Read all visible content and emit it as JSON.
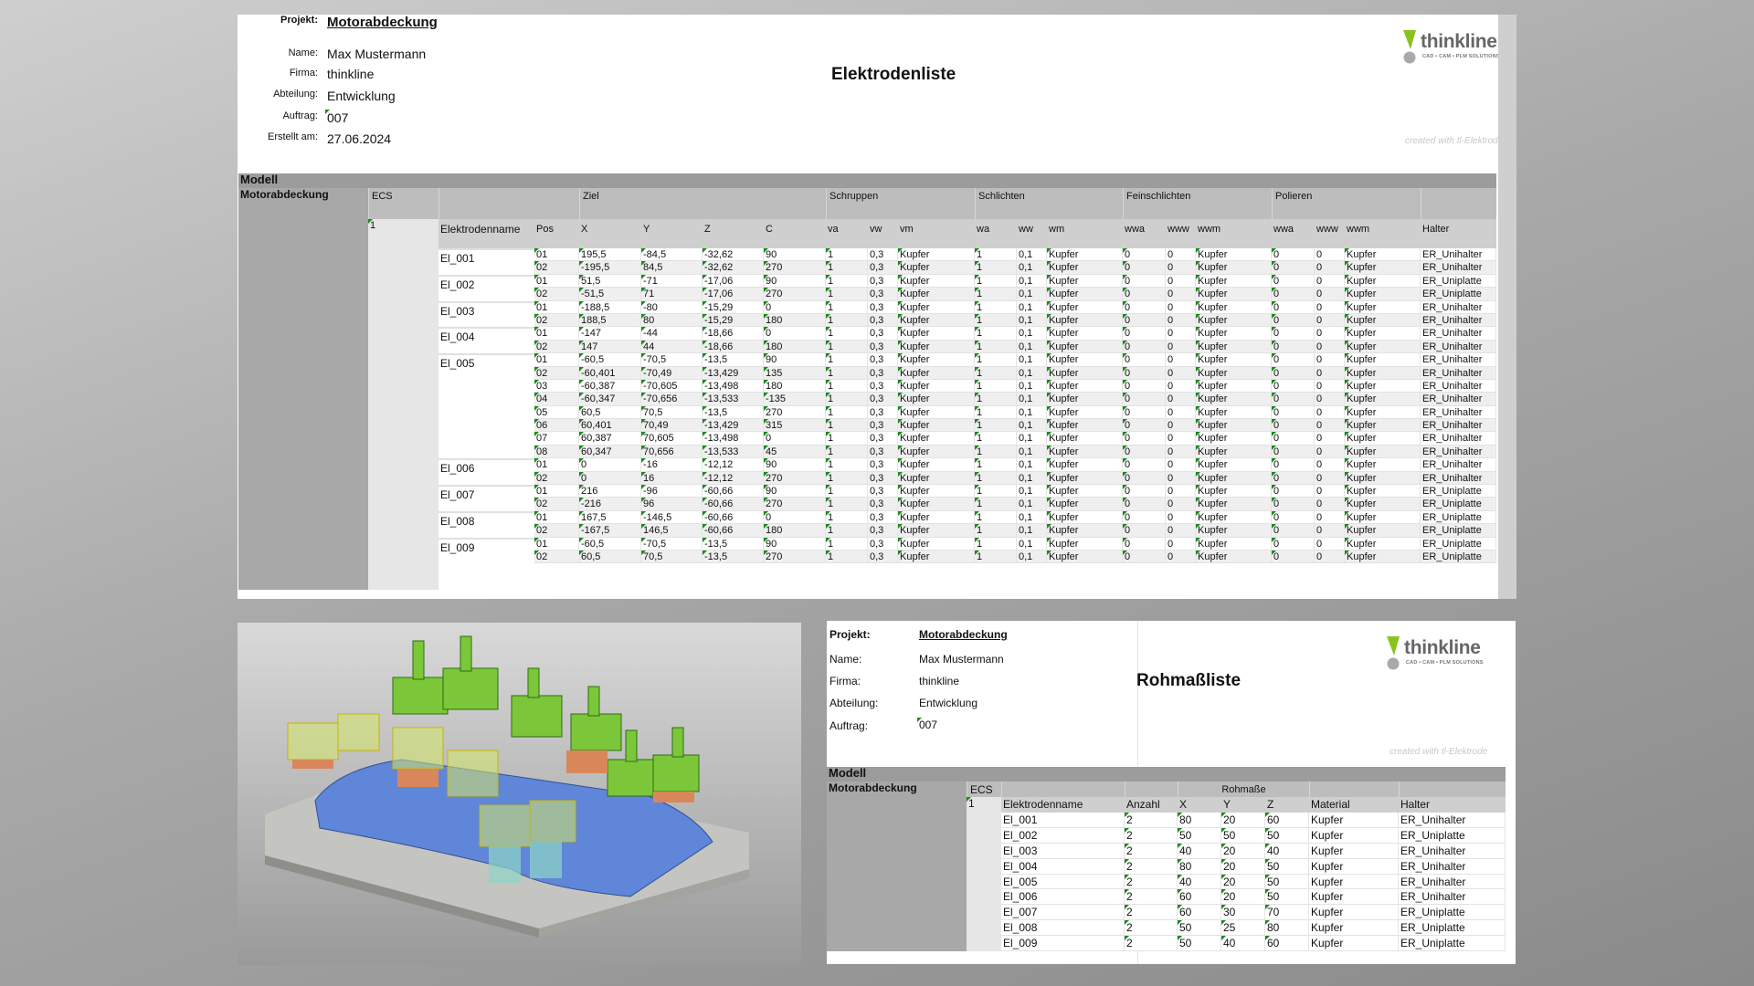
{
  "elektrodenliste": {
    "header": {
      "projekt_label": "Projekt:",
      "projekt": "Motorabdeckung",
      "name_label": "Name:",
      "name": "Max Mustermann",
      "firma_label": "Firma:",
      "firma": "thinkline",
      "abteilung_label": "Abteilung:",
      "abteilung": "Entwicklung",
      "auftrag_label": "Auftrag:",
      "auftrag": "007",
      "erstellt_label": "Erstellt am:",
      "erstellt": "27.06.2024",
      "title": "Elektrodenliste",
      "created_with": "created with tl-Elektrode"
    },
    "logo": {
      "word": "thinkline",
      "tagline": "CAD • CAM • PLM SOLUTIONS",
      "accent": "#8cc21f"
    },
    "table": {
      "modell_label": "Modell",
      "modell": "Motorabdeckung",
      "ecs_label": "ECS",
      "ecs": "1",
      "groups": [
        "Ziel",
        "Schruppen",
        "Schlichten",
        "Feinschlichten",
        "Polieren"
      ],
      "columns": [
        "Elektrodenname",
        "Pos",
        "X",
        "Y",
        "Z",
        "C",
        "va",
        "vw",
        "vm",
        "wa",
        "ww",
        "wm",
        "wwa",
        "www",
        "wwm",
        "wwa",
        "www",
        "wwm",
        "Halter"
      ],
      "electrodes": [
        {
          "name": "El_001",
          "rows": [
            [
              "01",
              "195,5",
              "-84,5",
              "-32,62",
              "90",
              "1",
              "0,3",
              "Kupfer",
              "1",
              "0,1",
              "Kupfer",
              "0",
              "0",
              "Kupfer",
              "0",
              "0",
              "Kupfer",
              "ER_Unihalter"
            ],
            [
              "02",
              "-195,5",
              "84,5",
              "-32,62",
              "270",
              "1",
              "0,3",
              "Kupfer",
              "1",
              "0,1",
              "Kupfer",
              "0",
              "0",
              "Kupfer",
              "0",
              "0",
              "Kupfer",
              "ER_Unihalter"
            ]
          ]
        },
        {
          "name": "El_002",
          "rows": [
            [
              "01",
              "51,5",
              "-71",
              "-17,06",
              "90",
              "1",
              "0,3",
              "Kupfer",
              "1",
              "0,1",
              "Kupfer",
              "0",
              "0",
              "Kupfer",
              "0",
              "0",
              "Kupfer",
              "ER_Uniplatte"
            ],
            [
              "02",
              "-51,5",
              "71",
              "-17,06",
              "270",
              "1",
              "0,3",
              "Kupfer",
              "1",
              "0,1",
              "Kupfer",
              "0",
              "0",
              "Kupfer",
              "0",
              "0",
              "Kupfer",
              "ER_Uniplatte"
            ]
          ]
        },
        {
          "name": "El_003",
          "rows": [
            [
              "01",
              "-188,5",
              "-80",
              "-15,29",
              "0",
              "1",
              "0,3",
              "Kupfer",
              "1",
              "0,1",
              "Kupfer",
              "0",
              "0",
              "Kupfer",
              "0",
              "0",
              "Kupfer",
              "ER_Unihalter"
            ],
            [
              "02",
              "188,5",
              "80",
              "-15,29",
              "180",
              "1",
              "0,3",
              "Kupfer",
              "1",
              "0,1",
              "Kupfer",
              "0",
              "0",
              "Kupfer",
              "0",
              "0",
              "Kupfer",
              "ER_Unihalter"
            ]
          ]
        },
        {
          "name": "El_004",
          "rows": [
            [
              "01",
              "-147",
              "-44",
              "-18,66",
              "0",
              "1",
              "0,3",
              "Kupfer",
              "1",
              "0,1",
              "Kupfer",
              "0",
              "0",
              "Kupfer",
              "0",
              "0",
              "Kupfer",
              "ER_Unihalter"
            ],
            [
              "02",
              "147",
              "44",
              "-18,66",
              "180",
              "1",
              "0,3",
              "Kupfer",
              "1",
              "0,1",
              "Kupfer",
              "0",
              "0",
              "Kupfer",
              "0",
              "0",
              "Kupfer",
              "ER_Unihalter"
            ]
          ]
        },
        {
          "name": "El_005",
          "rows": [
            [
              "01",
              "-60,5",
              "-70,5",
              "-13,5",
              "90",
              "1",
              "0,3",
              "Kupfer",
              "1",
              "0,1",
              "Kupfer",
              "0",
              "0",
              "Kupfer",
              "0",
              "0",
              "Kupfer",
              "ER_Unihalter"
            ],
            [
              "02",
              "-60,401",
              "-70,49",
              "-13,429",
              "135",
              "1",
              "0,3",
              "Kupfer",
              "1",
              "0,1",
              "Kupfer",
              "0",
              "0",
              "Kupfer",
              "0",
              "0",
              "Kupfer",
              "ER_Unihalter"
            ],
            [
              "03",
              "-60,387",
              "-70,605",
              "-13,498",
              "180",
              "1",
              "0,3",
              "Kupfer",
              "1",
              "0,1",
              "Kupfer",
              "0",
              "0",
              "Kupfer",
              "0",
              "0",
              "Kupfer",
              "ER_Unihalter"
            ],
            [
              "04",
              "-60,347",
              "-70,656",
              "-13,533",
              "-135",
              "1",
              "0,3",
              "Kupfer",
              "1",
              "0,1",
              "Kupfer",
              "0",
              "0",
              "Kupfer",
              "0",
              "0",
              "Kupfer",
              "ER_Unihalter"
            ],
            [
              "05",
              "60,5",
              "70,5",
              "-13,5",
              "270",
              "1",
              "0,3",
              "Kupfer",
              "1",
              "0,1",
              "Kupfer",
              "0",
              "0",
              "Kupfer",
              "0",
              "0",
              "Kupfer",
              "ER_Unihalter"
            ],
            [
              "06",
              "60,401",
              "70,49",
              "-13,429",
              "315",
              "1",
              "0,3",
              "Kupfer",
              "1",
              "0,1",
              "Kupfer",
              "0",
              "0",
              "Kupfer",
              "0",
              "0",
              "Kupfer",
              "ER_Unihalter"
            ],
            [
              "07",
              "60,387",
              "70,605",
              "-13,498",
              "0",
              "1",
              "0,3",
              "Kupfer",
              "1",
              "0,1",
              "Kupfer",
              "0",
              "0",
              "Kupfer",
              "0",
              "0",
              "Kupfer",
              "ER_Unihalter"
            ],
            [
              "08",
              "60,347",
              "70,656",
              "-13,533",
              "45",
              "1",
              "0,3",
              "Kupfer",
              "1",
              "0,1",
              "Kupfer",
              "0",
              "0",
              "Kupfer",
              "0",
              "0",
              "Kupfer",
              "ER_Unihalter"
            ]
          ]
        },
        {
          "name": "El_006",
          "rows": [
            [
              "01",
              "0",
              "-16",
              "-12,12",
              "90",
              "1",
              "0,3",
              "Kupfer",
              "1",
              "0,1",
              "Kupfer",
              "0",
              "0",
              "Kupfer",
              "0",
              "0",
              "Kupfer",
              "ER_Unihalter"
            ],
            [
              "02",
              "0",
              "16",
              "-12,12",
              "270",
              "1",
              "0,3",
              "Kupfer",
              "1",
              "0,1",
              "Kupfer",
              "0",
              "0",
              "Kupfer",
              "0",
              "0",
              "Kupfer",
              "ER_Unihalter"
            ]
          ]
        },
        {
          "name": "El_007",
          "rows": [
            [
              "01",
              "216",
              "-96",
              "-60,66",
              "90",
              "1",
              "0,3",
              "Kupfer",
              "1",
              "0,1",
              "Kupfer",
              "0",
              "0",
              "Kupfer",
              "0",
              "0",
              "Kupfer",
              "ER_Uniplatte"
            ],
            [
              "02",
              "-216",
              "96",
              "-60,66",
              "270",
              "1",
              "0,3",
              "Kupfer",
              "1",
              "0,1",
              "Kupfer",
              "0",
              "0",
              "Kupfer",
              "0",
              "0",
              "Kupfer",
              "ER_Uniplatte"
            ]
          ]
        },
        {
          "name": "El_008",
          "rows": [
            [
              "01",
              "167,5",
              "-146,5",
              "-60,66",
              "0",
              "1",
              "0,3",
              "Kupfer",
              "1",
              "0,1",
              "Kupfer",
              "0",
              "0",
              "Kupfer",
              "0",
              "0",
              "Kupfer",
              "ER_Uniplatte"
            ],
            [
              "02",
              "-167,5",
              "146,5",
              "-60,66",
              "180",
              "1",
              "0,3",
              "Kupfer",
              "1",
              "0,1",
              "Kupfer",
              "0",
              "0",
              "Kupfer",
              "0",
              "0",
              "Kupfer",
              "ER_Uniplatte"
            ]
          ]
        },
        {
          "name": "El_009",
          "rows": [
            [
              "01",
              "-60,5",
              "-70,5",
              "-13,5",
              "90",
              "1",
              "0,3",
              "Kupfer",
              "1",
              "0,1",
              "Kupfer",
              "0",
              "0",
              "Kupfer",
              "0",
              "0",
              "Kupfer",
              "ER_Uniplatte"
            ],
            [
              "02",
              "60,5",
              "70,5",
              "-13,5",
              "270",
              "1",
              "0,3",
              "Kupfer",
              "1",
              "0,1",
              "Kupfer",
              "0",
              "0",
              "Kupfer",
              "0",
              "0",
              "Kupfer",
              "ER_Uniplatte"
            ]
          ]
        }
      ]
    }
  },
  "rohmassliste": {
    "header": {
      "projekt_label": "Projekt:",
      "projekt": "Motorabdeckung",
      "name_label": "Name:",
      "name": "Max Mustermann",
      "firma_label": "Firma:",
      "firma": "thinkline",
      "abteilung_label": "Abteilung:",
      "abteilung": "Entwicklung",
      "auftrag_label": "Auftrag:",
      "auftrag": "007",
      "title": "Rohmaßliste",
      "created_with": "created with tl-Elektrode"
    },
    "logo": {
      "word": "thinkline",
      "tagline": "CAD • CAM • PLM SOLUTIONS"
    },
    "table": {
      "modell_label": "Modell",
      "modell": "Motorabdeckung",
      "ecs_label": "ECS",
      "ecs": "1",
      "group": "Rohmaße",
      "columns": [
        "Elektrodenname",
        "Anzahl",
        "X",
        "Y",
        "Z",
        "Material",
        "Halter"
      ],
      "rows": [
        [
          "El_001",
          "2",
          "80",
          "20",
          "60",
          "Kupfer",
          "ER_Unihalter"
        ],
        [
          "El_002",
          "2",
          "50",
          "50",
          "50",
          "Kupfer",
          "ER_Uniplatte"
        ],
        [
          "El_003",
          "2",
          "40",
          "20",
          "40",
          "Kupfer",
          "ER_Unihalter"
        ],
        [
          "El_004",
          "2",
          "80",
          "20",
          "50",
          "Kupfer",
          "ER_Unihalter"
        ],
        [
          "El_005",
          "2",
          "40",
          "20",
          "50",
          "Kupfer",
          "ER_Unihalter"
        ],
        [
          "El_006",
          "2",
          "60",
          "20",
          "50",
          "Kupfer",
          "ER_Unihalter"
        ],
        [
          "El_007",
          "2",
          "60",
          "30",
          "70",
          "Kupfer",
          "ER_Uniplatte"
        ],
        [
          "El_008",
          "2",
          "50",
          "25",
          "80",
          "Kupfer",
          "ER_Uniplatte"
        ],
        [
          "El_009",
          "2",
          "50",
          "40",
          "60",
          "Kupfer",
          "ER_Uniplatte"
        ]
      ]
    }
  },
  "model_view": {
    "colors": {
      "plate": "#b9b9b6",
      "body": "#5f86d8",
      "electrode_holder": "#7cc63a",
      "copper": "#d9875a"
    }
  }
}
